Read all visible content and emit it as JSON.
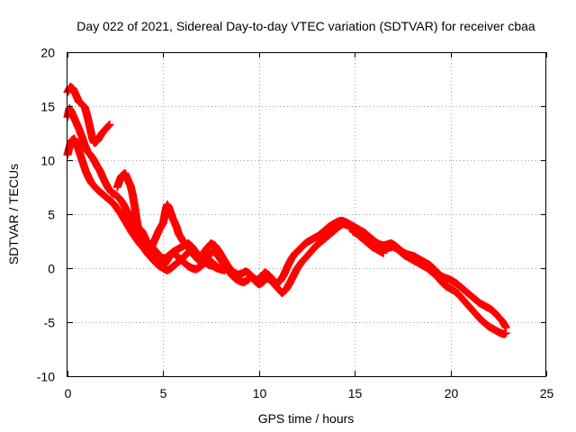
{
  "chart_data": {
    "type": "scatter",
    "title": "Day 022 of 2021, Sidereal Day-to-day VTEC variation (SDTVAR) for receiver cbaa",
    "xlabel": "GPS time / hours",
    "ylabel": "SDTVAR / TECUs",
    "xlim": [
      0,
      25
    ],
    "ylim": [
      -10,
      20
    ],
    "xticks": [
      0,
      5,
      10,
      15,
      20,
      25
    ],
    "yticks": [
      -10,
      -5,
      0,
      5,
      10,
      15,
      20
    ],
    "xtick_labels": [
      "0",
      "5",
      "10",
      "15",
      "20",
      "25"
    ],
    "ytick_labels": [
      "-10",
      "-5",
      "0",
      "5",
      "10",
      "15",
      "20"
    ],
    "grid": true,
    "marker": "plus",
    "series": [
      {
        "name": "SDTVAR",
        "color": "#ff0000",
        "tracks": [
          {
            "x": [
              0.0,
              0.15,
              0.3,
              0.45,
              0.6,
              0.75,
              0.9,
              1.0,
              1.1,
              1.2,
              1.3,
              1.4,
              1.5,
              1.6,
              1.7,
              1.8,
              1.9,
              2.0,
              2.1,
              2.2
            ],
            "y": [
              16.3,
              16.8,
              16.6,
              16.0,
              15.4,
              15.2,
              14.9,
              14.3,
              13.6,
              12.8,
              12.0,
              11.6,
              11.7,
              11.9,
              12.2,
              12.5,
              12.7,
              12.9,
              13.1,
              13.3
            ]
          },
          {
            "x": [
              0.0,
              0.1,
              0.2,
              0.3,
              0.45,
              0.6,
              0.75,
              0.9,
              1.05,
              1.2,
              1.35,
              1.5,
              1.7,
              1.9,
              2.1,
              2.3,
              2.5,
              2.7,
              2.9,
              3.1,
              3.3,
              3.5,
              3.7,
              3.9,
              4.1,
              4.3,
              4.5,
              4.7,
              4.9,
              5.1,
              5.3,
              5.5,
              5.7,
              5.9,
              6.1,
              6.3,
              6.5,
              6.7,
              6.9,
              7.1,
              7.3,
              7.5,
              7.7,
              7.9,
              8.1,
              8.3,
              8.5,
              8.7,
              8.9,
              9.1,
              9.3,
              9.5,
              9.7,
              9.9,
              10.1,
              10.3,
              10.5,
              10.7,
              10.9,
              11.1,
              11.3,
              11.5,
              11.7,
              11.9,
              12.1,
              12.3,
              12.5,
              12.7,
              12.9,
              13.1,
              13.3,
              13.5,
              13.7,
              13.9,
              14.1,
              14.3,
              14.5,
              14.7,
              14.9,
              15.1,
              15.3,
              15.5,
              15.7,
              15.9,
              16.1,
              16.3,
              16.5,
              16.7,
              16.9,
              17.1,
              17.3,
              17.5,
              17.7,
              17.9,
              18.1,
              18.3,
              18.5,
              18.7,
              18.9,
              19.1,
              19.3,
              19.5,
              19.7,
              19.9,
              20.1,
              20.3,
              20.5,
              20.7,
              20.9,
              21.1,
              21.3,
              21.5,
              21.7,
              21.9,
              22.1,
              22.3,
              22.5,
              22.7,
              22.9
            ],
            "y": [
              14.0,
              14.8,
              14.5,
              14.1,
              13.5,
              12.9,
              12.2,
              11.4,
              10.8,
              10.5,
              10.1,
              9.6,
              9.0,
              8.2,
              7.5,
              7.0,
              6.8,
              6.5,
              6.0,
              5.3,
              4.7,
              4.0,
              3.3,
              2.8,
              2.5,
              2.2,
              1.8,
              1.4,
              1.0,
              0.9,
              1.2,
              1.5,
              1.7,
              1.9,
              2.1,
              2.3,
              2.0,
              1.5,
              1.1,
              1.4,
              1.9,
              2.3,
              2.1,
              1.6,
              1.0,
              0.4,
              -0.1,
              -0.4,
              -0.6,
              -0.5,
              -0.3,
              -0.5,
              -0.9,
              -1.1,
              -0.8,
              -0.4,
              -0.6,
              -1.0,
              -1.4,
              -1.2,
              -0.6,
              0.2,
              0.9,
              1.4,
              1.7,
              2.1,
              2.4,
              2.6,
              2.8,
              3.0,
              3.3,
              3.6,
              3.9,
              4.1,
              4.3,
              4.4,
              4.3,
              4.1,
              3.9,
              3.7,
              3.5,
              3.3,
              3.0,
              2.7,
              2.4,
              2.2,
              2.1,
              2.2,
              2.3,
              2.1,
              1.8,
              1.5,
              1.3,
              1.2,
              1.1,
              0.9,
              0.7,
              0.5,
              0.3,
              0.0,
              -0.4,
              -0.7,
              -0.9,
              -1.0,
              -1.2,
              -1.4,
              -1.7,
              -2.0,
              -2.3,
              -2.6,
              -2.9,
              -3.2,
              -3.4,
              -3.6,
              -3.8,
              -4.1,
              -4.5,
              -4.9,
              -5.5
            ],
            "fork": {
              "x": [
                14.9,
                15.1,
                15.3,
                15.5,
                15.7,
                15.9,
                16.1,
                16.3,
                16.5
              ],
              "y": [
                3.4,
                3.2,
                2.9,
                2.6,
                2.3,
                2.0,
                1.8,
                1.6,
                1.4
              ]
            }
          },
          {
            "x": [
              0.0,
              0.1,
              0.2,
              0.35,
              0.5,
              0.65,
              0.8,
              0.95,
              1.1,
              1.25,
              1.4,
              1.6,
              1.8,
              2.0,
              2.2,
              2.4,
              2.6,
              2.8,
              3.0,
              3.2,
              3.4,
              3.6,
              3.8,
              4.0,
              4.2,
              4.4,
              4.6,
              4.8,
              5.0,
              5.2,
              5.4,
              5.6,
              5.8,
              6.0,
              6.2,
              6.4,
              6.6,
              6.8,
              7.0,
              7.2,
              7.4,
              7.6,
              7.8,
              8.0,
              8.2,
              8.4,
              8.6,
              8.8,
              9.0,
              9.2,
              9.4,
              9.6,
              9.8,
              10.0,
              10.2,
              10.4,
              10.6,
              10.8,
              11.0,
              11.2,
              11.4,
              11.6,
              11.8,
              12.0,
              12.2,
              12.4,
              12.6,
              12.8,
              13.0,
              13.2,
              13.4,
              13.6,
              13.8,
              14.0,
              14.2,
              14.4,
              14.6,
              14.8,
              15.0,
              15.2,
              15.4,
              15.6,
              15.8,
              16.0,
              16.2,
              16.4,
              16.6,
              16.8,
              17.0,
              17.2,
              17.4,
              17.6,
              17.8,
              18.0,
              18.2,
              18.4,
              18.6,
              18.8,
              19.0,
              19.2,
              19.4,
              19.6,
              19.8,
              20.0,
              20.2,
              20.4,
              20.6,
              20.8,
              21.0,
              21.2,
              21.4,
              21.6,
              21.8,
              22.0,
              22.2,
              22.4,
              22.6,
              22.8,
              22.9
            ],
            "y": [
              10.5,
              11.2,
              11.8,
              12.0,
              11.4,
              10.6,
              9.8,
              9.0,
              8.4,
              7.9,
              7.6,
              7.2,
              6.9,
              6.6,
              6.3,
              6.0,
              5.5,
              5.0,
              4.4,
              3.8,
              3.2,
              2.7,
              2.2,
              1.8,
              1.3,
              0.9,
              0.5,
              0.2,
              0.0,
              -0.2,
              0.0,
              0.3,
              0.6,
              0.9,
              1.3,
              1.6,
              1.4,
              1.0,
              0.7,
              0.8,
              1.2,
              1.6,
              1.3,
              0.8,
              0.2,
              -0.3,
              -0.7,
              -1.0,
              -1.2,
              -1.3,
              -1.1,
              -0.8,
              -1.2,
              -1.5,
              -1.3,
              -0.9,
              -1.1,
              -1.5,
              -1.9,
              -2.3,
              -2.0,
              -1.4,
              -0.7,
              0.0,
              0.5,
              0.9,
              1.3,
              1.7,
              2.1,
              2.4,
              2.7,
              3.0,
              3.3,
              3.6,
              3.9,
              4.1,
              4.0,
              3.8,
              3.6,
              3.4,
              3.2,
              3.0,
              2.7,
              2.4,
              2.1,
              1.9,
              1.8,
              1.9,
              2.0,
              1.8,
              1.5,
              1.2,
              1.0,
              0.8,
              0.6,
              0.4,
              0.2,
              0.0,
              -0.3,
              -0.6,
              -1.0,
              -1.4,
              -1.7,
              -1.9,
              -2.1,
              -2.4,
              -2.8,
              -3.2,
              -3.6,
              -4.0,
              -4.4,
              -4.8,
              -5.1,
              -5.4,
              -5.6,
              -5.8,
              -6.0,
              -6.1,
              -6.0
            ]
          },
          {
            "x": [
              2.6,
              2.8,
              3.0,
              3.1,
              3.2,
              3.3,
              3.4,
              3.5,
              3.6,
              3.7,
              3.8,
              3.9,
              4.0,
              4.2,
              4.4,
              4.6,
              4.8,
              5.0,
              5.1,
              5.2,
              5.3,
              5.4,
              5.5,
              5.6,
              5.7,
              5.8,
              6.0,
              6.2,
              6.4,
              6.6,
              6.8,
              7.0,
              7.2,
              7.4,
              7.6,
              7.8,
              8.0,
              8.2
            ],
            "y": [
              7.5,
              8.5,
              8.8,
              8.4,
              8.0,
              7.6,
              6.8,
              5.8,
              4.6,
              3.6,
              2.8,
              2.3,
              2.0,
              1.6,
              2.0,
              2.8,
              3.6,
              4.2,
              5.2,
              5.9,
              5.6,
              5.1,
              4.6,
              4.2,
              3.8,
              3.2,
              2.6,
              2.1,
              1.7,
              1.2,
              0.8,
              0.6,
              0.5,
              0.3,
              0.2,
              0.0,
              -0.1,
              -0.2
            ]
          },
          {
            "x": [
              3.5,
              3.7,
              3.9,
              4.1,
              4.3,
              4.5,
              4.7,
              4.9,
              5.1,
              5.3,
              5.5,
              5.7,
              5.9,
              6.1,
              6.3,
              6.5,
              6.7,
              6.9,
              7.1,
              7.3,
              7.5,
              7.7,
              7.9
            ],
            "y": [
              3.2,
              3.8,
              3.4,
              2.6,
              1.8,
              1.2,
              0.6,
              0.2,
              0.4,
              1.0,
              1.4,
              1.2,
              0.8,
              0.5,
              0.2,
              0.0,
              -0.1,
              0.1,
              0.4,
              0.7,
              0.6,
              0.3,
              0.0
            ]
          }
        ]
      }
    ]
  }
}
